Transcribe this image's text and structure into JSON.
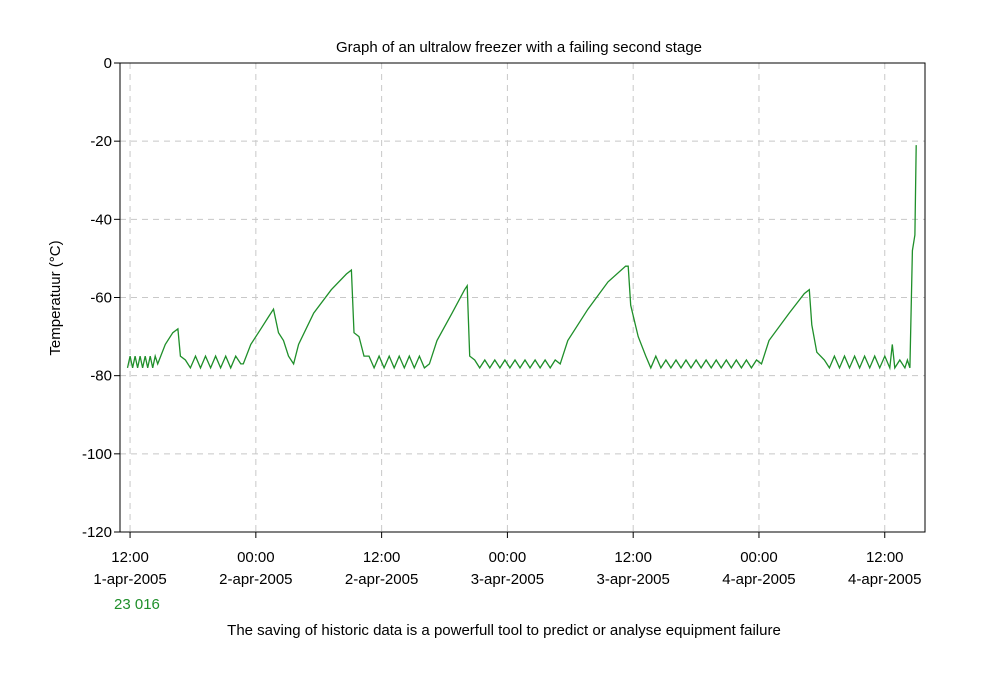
{
  "caption": "The saving of historic data is a powerfull tool to predict or analyse equipment failure",
  "series_id_label": "23 016",
  "chart_data": {
    "type": "line",
    "title": "Graph of an ultralow freezer with a failing second stage",
    "xlabel": "",
    "ylabel": "Temperatuur (°C)",
    "ylim": [
      -120,
      0
    ],
    "yticks": [
      0,
      -20,
      -40,
      -60,
      -80,
      -100,
      -120
    ],
    "xlim": [
      -0.04,
      3.16
    ],
    "x_unit": "days from 1-apr-2005 12:00",
    "xticks": [
      {
        "x": 0.0,
        "time": "12:00",
        "date": "1-apr-2005"
      },
      {
        "x": 0.5,
        "time": "00:00",
        "date": "2-apr-2005"
      },
      {
        "x": 1.0,
        "time": "12:00",
        "date": "2-apr-2005"
      },
      {
        "x": 1.5,
        "time": "00:00",
        "date": "3-apr-2005"
      },
      {
        "x": 2.0,
        "time": "12:00",
        "date": "3-apr-2005"
      },
      {
        "x": 2.5,
        "time": "00:00",
        "date": "4-apr-2005"
      },
      {
        "x": 3.0,
        "time": "12:00",
        "date": "4-apr-2005"
      }
    ],
    "grid": true,
    "line_color": "#1f8f2a",
    "series": [
      {
        "values": [
          [
            -0.01,
            -78
          ],
          [
            0.0,
            -75
          ],
          [
            0.01,
            -78
          ],
          [
            0.02,
            -75
          ],
          [
            0.03,
            -78
          ],
          [
            0.04,
            -75
          ],
          [
            0.05,
            -78
          ],
          [
            0.06,
            -75
          ],
          [
            0.07,
            -78
          ],
          [
            0.08,
            -75
          ],
          [
            0.09,
            -78
          ],
          [
            0.1,
            -75
          ],
          [
            0.11,
            -77
          ],
          [
            0.14,
            -72
          ],
          [
            0.17,
            -69
          ],
          [
            0.19,
            -68
          ],
          [
            0.2,
            -75
          ],
          [
            0.22,
            -76
          ],
          [
            0.24,
            -78
          ],
          [
            0.26,
            -75
          ],
          [
            0.28,
            -78
          ],
          [
            0.3,
            -75
          ],
          [
            0.32,
            -78
          ],
          [
            0.34,
            -75
          ],
          [
            0.36,
            -78
          ],
          [
            0.38,
            -75
          ],
          [
            0.4,
            -78
          ],
          [
            0.42,
            -75
          ],
          [
            0.44,
            -77
          ],
          [
            0.45,
            -77
          ],
          [
            0.48,
            -72
          ],
          [
            0.52,
            -68
          ],
          [
            0.55,
            -65
          ],
          [
            0.57,
            -63
          ],
          [
            0.59,
            -69
          ],
          [
            0.61,
            -71
          ],
          [
            0.63,
            -75
          ],
          [
            0.65,
            -77
          ],
          [
            0.67,
            -72
          ],
          [
            0.73,
            -64
          ],
          [
            0.8,
            -58
          ],
          [
            0.86,
            -54
          ],
          [
            0.88,
            -53
          ],
          [
            0.89,
            -69
          ],
          [
            0.91,
            -70
          ],
          [
            0.93,
            -75
          ],
          [
            0.95,
            -75
          ],
          [
            0.97,
            -78
          ],
          [
            0.99,
            -75
          ],
          [
            1.01,
            -78
          ],
          [
            1.03,
            -75
          ],
          [
            1.05,
            -78
          ],
          [
            1.07,
            -75
          ],
          [
            1.09,
            -78
          ],
          [
            1.11,
            -75
          ],
          [
            1.13,
            -78
          ],
          [
            1.15,
            -75
          ],
          [
            1.17,
            -78
          ],
          [
            1.19,
            -77
          ],
          [
            1.22,
            -71
          ],
          [
            1.28,
            -64
          ],
          [
            1.33,
            -58
          ],
          [
            1.34,
            -57
          ],
          [
            1.35,
            -75
          ],
          [
            1.37,
            -76
          ],
          [
            1.39,
            -78
          ],
          [
            1.41,
            -76
          ],
          [
            1.43,
            -78
          ],
          [
            1.45,
            -76
          ],
          [
            1.47,
            -78
          ],
          [
            1.49,
            -76
          ],
          [
            1.51,
            -78
          ],
          [
            1.53,
            -76
          ],
          [
            1.55,
            -78
          ],
          [
            1.57,
            -76
          ],
          [
            1.59,
            -78
          ],
          [
            1.61,
            -76
          ],
          [
            1.63,
            -78
          ],
          [
            1.65,
            -76
          ],
          [
            1.67,
            -78
          ],
          [
            1.69,
            -76
          ],
          [
            1.71,
            -77
          ],
          [
            1.74,
            -71
          ],
          [
            1.82,
            -63
          ],
          [
            1.9,
            -56
          ],
          [
            1.97,
            -52
          ],
          [
            1.98,
            -52
          ],
          [
            1.99,
            -62
          ],
          [
            2.02,
            -70
          ],
          [
            2.05,
            -75
          ],
          [
            2.07,
            -78
          ],
          [
            2.09,
            -75
          ],
          [
            2.11,
            -78
          ],
          [
            2.13,
            -76
          ],
          [
            2.15,
            -78
          ],
          [
            2.17,
            -76
          ],
          [
            2.19,
            -78
          ],
          [
            2.21,
            -76
          ],
          [
            2.23,
            -78
          ],
          [
            2.25,
            -76
          ],
          [
            2.27,
            -78
          ],
          [
            2.29,
            -76
          ],
          [
            2.31,
            -78
          ],
          [
            2.33,
            -76
          ],
          [
            2.35,
            -78
          ],
          [
            2.37,
            -76
          ],
          [
            2.39,
            -78
          ],
          [
            2.41,
            -76
          ],
          [
            2.43,
            -78
          ],
          [
            2.45,
            -76
          ],
          [
            2.47,
            -78
          ],
          [
            2.49,
            -76
          ],
          [
            2.51,
            -77
          ],
          [
            2.54,
            -71
          ],
          [
            2.62,
            -64
          ],
          [
            2.68,
            -59
          ],
          [
            2.7,
            -58
          ],
          [
            2.71,
            -67
          ],
          [
            2.73,
            -74
          ],
          [
            2.76,
            -76
          ],
          [
            2.78,
            -78
          ],
          [
            2.8,
            -75
          ],
          [
            2.82,
            -78
          ],
          [
            2.84,
            -75
          ],
          [
            2.86,
            -78
          ],
          [
            2.88,
            -75
          ],
          [
            2.9,
            -78
          ],
          [
            2.92,
            -75
          ],
          [
            2.94,
            -78
          ],
          [
            2.96,
            -75
          ],
          [
            2.98,
            -78
          ],
          [
            3.0,
            -75
          ],
          [
            3.02,
            -78
          ],
          [
            3.03,
            -72
          ],
          [
            3.04,
            -78
          ],
          [
            3.06,
            -76
          ],
          [
            3.08,
            -78
          ],
          [
            3.09,
            -76
          ],
          [
            3.1,
            -78
          ],
          [
            3.11,
            -48
          ],
          [
            3.12,
            -44
          ],
          [
            3.125,
            -21
          ]
        ]
      }
    ]
  }
}
